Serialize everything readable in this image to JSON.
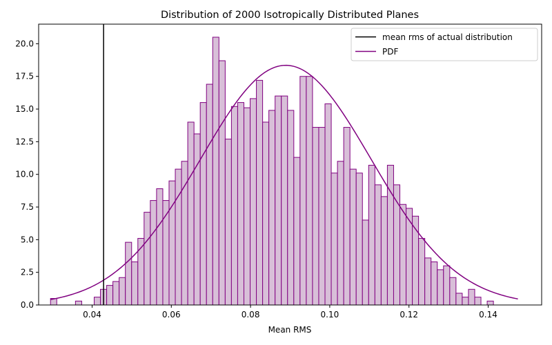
{
  "chart_data": {
    "type": "bar",
    "title": "Distribution of 2000 Isotropically Distributed Planes",
    "xlabel": "Mean RMS",
    "ylabel": "",
    "xlim": [
      0.0265,
      0.1535
    ],
    "ylim": [
      0,
      21.5
    ],
    "xticks": [
      "0.04",
      "0.06",
      "0.08",
      "0.10",
      "0.12",
      "0.14"
    ],
    "xtick_values": [
      0.04,
      0.06,
      0.08,
      0.1,
      0.12,
      0.14
    ],
    "yticks": [
      "0.0",
      "2.5",
      "5.0",
      "7.5",
      "10.0",
      "12.5",
      "15.0",
      "17.5",
      "20.0"
    ],
    "ytick_values": [
      0,
      2.5,
      5,
      7.5,
      10,
      12.5,
      15,
      17.5,
      20
    ],
    "histogram": {
      "name": "",
      "bin_start": 0.0295,
      "bin_width": 0.001575,
      "values": [
        0.5,
        0,
        0,
        0,
        0.3,
        0,
        0,
        0.6,
        1.2,
        1.5,
        1.8,
        2.1,
        4.8,
        3.3,
        5.1,
        7.1,
        8.0,
        8.9,
        8.0,
        9.5,
        10.4,
        11.0,
        14.0,
        13.1,
        15.5,
        16.9,
        20.5,
        18.7,
        12.7,
        15.2,
        15.5,
        15.1,
        15.8,
        17.2,
        14.0,
        14.9,
        16.0,
        16.0,
        14.9,
        11.3,
        17.5,
        17.5,
        13.6,
        13.6,
        15.4,
        10.1,
        11.0,
        13.6,
        10.4,
        10.1,
        6.5,
        10.7,
        9.2,
        8.3,
        10.7,
        9.2,
        7.7,
        7.4,
        6.8,
        5.1,
        3.6,
        3.3,
        2.7,
        3.0,
        2.1,
        0.9,
        0.6,
        1.2,
        0.6,
        0,
        0.3
      ],
      "fill": "#d8bfd8",
      "edge": "#800080"
    },
    "pdf": {
      "name": "PDF",
      "mean": 0.0889,
      "std": 0.0216,
      "peak": 18.35,
      "x_range": [
        0.0295,
        0.1475
      ],
      "color": "#800080"
    },
    "vline": {
      "name": "mean rms of actual distribution",
      "x": 0.0429,
      "color": "#000000"
    },
    "legend": {
      "location": "upper right",
      "entries": [
        "mean rms of actual distribution",
        "PDF"
      ]
    },
    "grid": false
  }
}
